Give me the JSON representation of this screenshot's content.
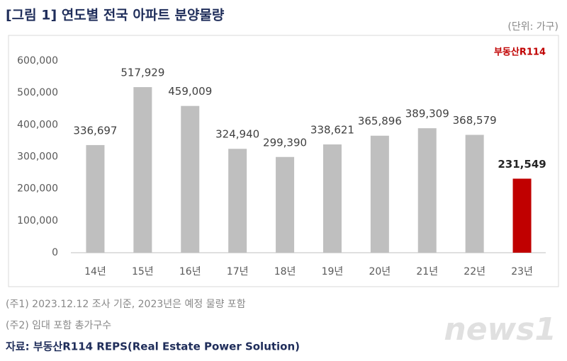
{
  "chart_data": {
    "type": "bar",
    "title": "[그림 1] 연도별 전국 아파트 분양물량",
    "unit_note": "(단위: 가구)",
    "logo": "부동산R114",
    "categories": [
      "14년",
      "15년",
      "16년",
      "17년",
      "18년",
      "19년",
      "20년",
      "21년",
      "22년",
      "23년"
    ],
    "values": [
      336697,
      517929,
      459009,
      324940,
      299390,
      338621,
      365896,
      389309,
      368579,
      231549
    ],
    "value_labels": [
      "336,697",
      "517,929",
      "459,009",
      "324,940",
      "299,390",
      "338,621",
      "365,896",
      "389,309",
      "368,579",
      "231,549"
    ],
    "colors": [
      "#bfbfbf",
      "#bfbfbf",
      "#bfbfbf",
      "#bfbfbf",
      "#bfbfbf",
      "#bfbfbf",
      "#bfbfbf",
      "#bfbfbf",
      "#bfbfbf",
      "#c00000"
    ],
    "ylim": [
      0,
      600000
    ],
    "yticks": [
      0,
      {
        "value": 100000,
        "label": "100,000"
      },
      {
        "value": 200000,
        "label": "200,000"
      },
      {
        "value": 300000,
        "label": "300,000"
      },
      {
        "value": 400000,
        "label": "400,000"
      },
      {
        "value": 500000,
        "label": "500,000"
      },
      {
        "value": 600000,
        "label": "600,000"
      }
    ],
    "grid": false,
    "notes": [
      "(주1) 2023.12.12 조사 기준, 2023년은 예정 물량 포함",
      "(주2) 임대 포함 총가구수"
    ],
    "source": "자료: 부동산R114 REPS(Real Estate Power Solution)",
    "watermark": "news1"
  }
}
